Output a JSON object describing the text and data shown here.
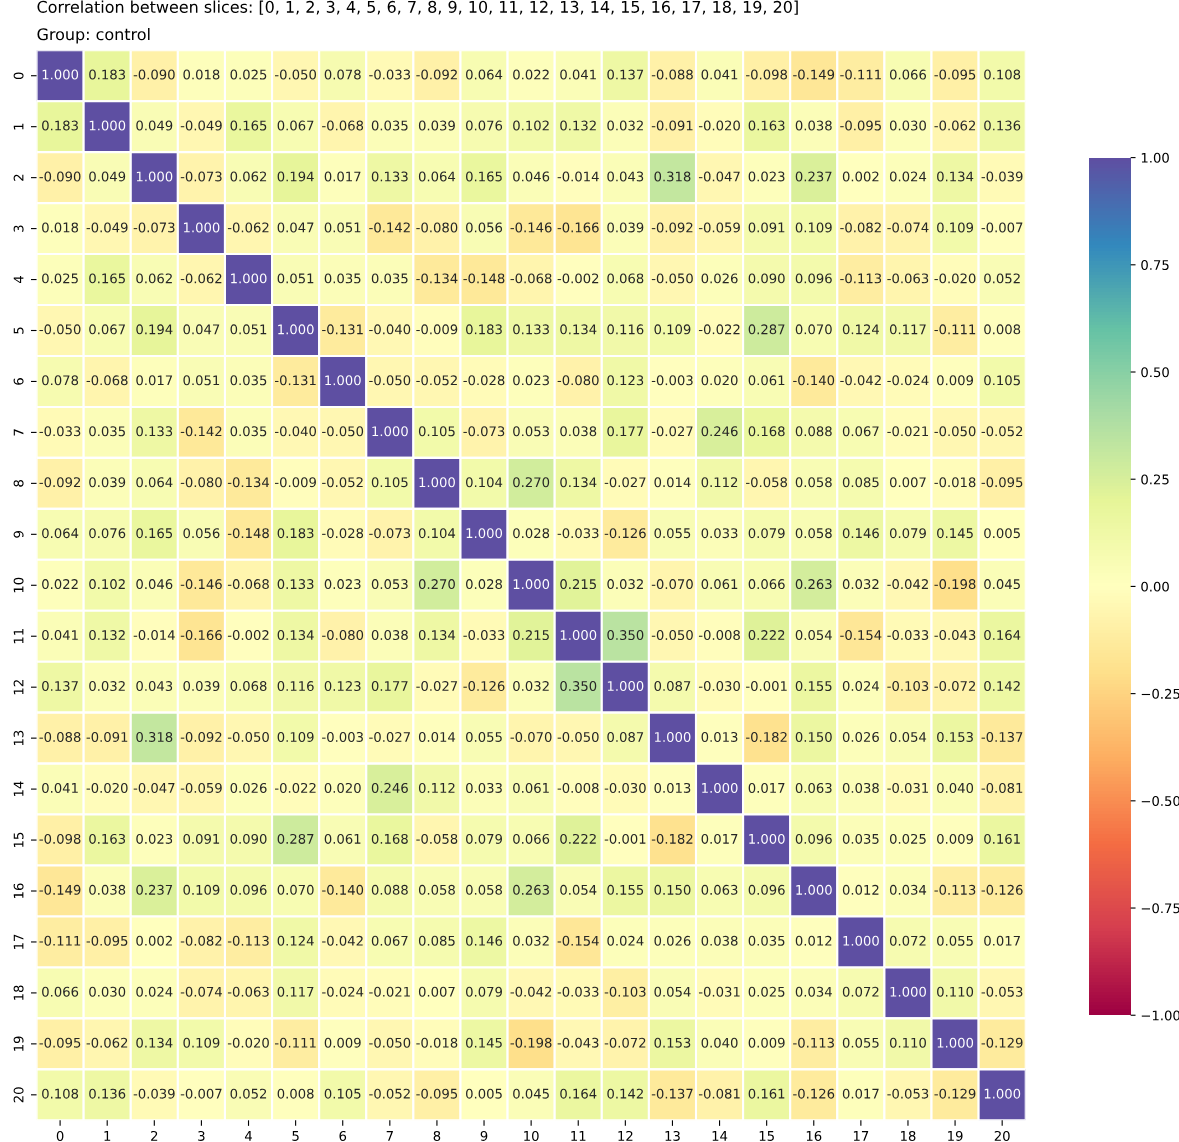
{
  "chart_data": {
    "type": "heatmap",
    "title": "Correlation between slices: [0, 1, 2, 3, 4, 5, 6, 7, 8, 9, 10, 11, 12, 13, 14, 15, 16, 17, 18, 19, 20]",
    "subtitle": "Group: control",
    "categories": [
      "0",
      "1",
      "2",
      "3",
      "4",
      "5",
      "6",
      "7",
      "8",
      "9",
      "10",
      "11",
      "12",
      "13",
      "14",
      "15",
      "16",
      "17",
      "18",
      "19",
      "20"
    ],
    "y_categories": [
      "0",
      "1",
      "2",
      "3",
      "4",
      "5",
      "6",
      "7",
      "8",
      "9",
      "10",
      "11",
      "12",
      "13",
      "14",
      "15",
      "16",
      "17",
      "18",
      "19",
      "20"
    ],
    "cells": [
      [
        1.0,
        0.183,
        -0.09,
        0.018,
        0.025,
        -0.05,
        0.078,
        -0.033,
        -0.092,
        0.064,
        0.022,
        0.041,
        0.137,
        -0.088,
        0.041,
        -0.098,
        -0.149,
        -0.111,
        0.066,
        -0.095,
        0.108
      ],
      [
        0.183,
        1.0,
        0.049,
        -0.049,
        0.165,
        0.067,
        -0.068,
        0.035,
        0.039,
        0.076,
        0.102,
        0.132,
        0.032,
        -0.091,
        -0.02,
        0.163,
        0.038,
        -0.095,
        0.03,
        -0.062,
        0.136
      ],
      [
        -0.09,
        0.049,
        1.0,
        -0.073,
        0.062,
        0.194,
        0.017,
        0.133,
        0.064,
        0.165,
        0.046,
        -0.014,
        0.043,
        0.318,
        -0.047,
        0.023,
        0.237,
        0.002,
        0.024,
        0.134,
        -0.039
      ],
      [
        0.018,
        -0.049,
        -0.073,
        1.0,
        -0.062,
        0.047,
        0.051,
        -0.142,
        -0.08,
        0.056,
        -0.146,
        -0.166,
        0.039,
        -0.092,
        -0.059,
        0.091,
        0.109,
        -0.082,
        -0.074,
        0.109,
        -0.007
      ],
      [
        0.025,
        0.165,
        0.062,
        -0.062,
        1.0,
        0.051,
        0.035,
        0.035,
        -0.134,
        -0.148,
        -0.068,
        -0.002,
        0.068,
        -0.05,
        0.026,
        0.09,
        0.096,
        -0.113,
        -0.063,
        -0.02,
        0.052
      ],
      [
        -0.05,
        0.067,
        0.194,
        0.047,
        0.051,
        1.0,
        -0.131,
        -0.04,
        -0.009,
        0.183,
        0.133,
        0.134,
        0.116,
        0.109,
        -0.022,
        0.287,
        0.07,
        0.124,
        0.117,
        -0.111,
        0.008
      ],
      [
        0.078,
        -0.068,
        0.017,
        0.051,
        0.035,
        -0.131,
        1.0,
        -0.05,
        -0.052,
        -0.028,
        0.023,
        -0.08,
        0.123,
        -0.003,
        0.02,
        0.061,
        -0.14,
        -0.042,
        -0.024,
        0.009,
        0.105
      ],
      [
        -0.033,
        0.035,
        0.133,
        -0.142,
        0.035,
        -0.04,
        -0.05,
        1.0,
        0.105,
        -0.073,
        0.053,
        0.038,
        0.177,
        -0.027,
        0.246,
        0.168,
        0.088,
        0.067,
        -0.021,
        -0.05,
        -0.052
      ],
      [
        -0.092,
        0.039,
        0.064,
        -0.08,
        -0.134,
        -0.009,
        -0.052,
        0.105,
        1.0,
        0.104,
        0.27,
        0.134,
        -0.027,
        0.014,
        0.112,
        -0.058,
        0.058,
        0.085,
        0.007,
        -0.018,
        -0.095
      ],
      [
        0.064,
        0.076,
        0.165,
        0.056,
        -0.148,
        0.183,
        -0.028,
        -0.073,
        0.104,
        1.0,
        0.028,
        -0.033,
        -0.126,
        0.055,
        0.033,
        0.079,
        0.058,
        0.146,
        0.079,
        0.145,
        0.005
      ],
      [
        0.022,
        0.102,
        0.046,
        -0.146,
        -0.068,
        0.133,
        0.023,
        0.053,
        0.27,
        0.028,
        1.0,
        0.215,
        0.032,
        -0.07,
        0.061,
        0.066,
        0.263,
        0.032,
        -0.042,
        -0.198,
        0.045
      ],
      [
        0.041,
        0.132,
        -0.014,
        -0.166,
        -0.002,
        0.134,
        -0.08,
        0.038,
        0.134,
        -0.033,
        0.215,
        1.0,
        0.35,
        -0.05,
        -0.008,
        0.222,
        0.054,
        -0.154,
        -0.033,
        -0.043,
        0.164
      ],
      [
        0.137,
        0.032,
        0.043,
        0.039,
        0.068,
        0.116,
        0.123,
        0.177,
        -0.027,
        -0.126,
        0.032,
        0.35,
        1.0,
        0.087,
        -0.03,
        -0.001,
        0.155,
        0.024,
        -0.103,
        -0.072,
        0.142
      ],
      [
        -0.088,
        -0.091,
        0.318,
        -0.092,
        -0.05,
        0.109,
        -0.003,
        -0.027,
        0.014,
        0.055,
        -0.07,
        -0.05,
        0.087,
        1.0,
        0.013,
        -0.182,
        0.15,
        0.026,
        0.054,
        0.153,
        -0.137
      ],
      [
        0.041,
        -0.02,
        -0.047,
        -0.059,
        0.026,
        -0.022,
        0.02,
        0.246,
        0.112,
        0.033,
        0.061,
        -0.008,
        -0.03,
        0.013,
        1.0,
        0.017,
        0.063,
        0.038,
        -0.031,
        0.04,
        -0.081
      ],
      [
        -0.098,
        0.163,
        0.023,
        0.091,
        0.09,
        0.287,
        0.061,
        0.168,
        -0.058,
        0.079,
        0.066,
        0.222,
        -0.001,
        -0.182,
        0.017,
        1.0,
        0.096,
        0.035,
        0.025,
        0.009,
        0.161
      ],
      [
        -0.149,
        0.038,
        0.237,
        0.109,
        0.096,
        0.07,
        -0.14,
        0.088,
        0.058,
        0.058,
        0.263,
        0.054,
        0.155,
        0.15,
        0.063,
        0.096,
        1.0,
        0.012,
        0.034,
        -0.113,
        -0.126
      ],
      [
        -0.111,
        -0.095,
        0.002,
        -0.082,
        -0.113,
        0.124,
        -0.042,
        0.067,
        0.085,
        0.146,
        0.032,
        -0.154,
        0.024,
        0.026,
        0.038,
        0.035,
        0.012,
        1.0,
        0.072,
        0.055,
        0.017
      ],
      [
        0.066,
        0.03,
        0.024,
        -0.074,
        -0.063,
        0.117,
        -0.024,
        -0.021,
        0.007,
        0.079,
        -0.042,
        -0.033,
        -0.103,
        0.054,
        -0.031,
        0.025,
        0.034,
        0.072,
        1.0,
        0.11,
        -0.053
      ],
      [
        -0.095,
        -0.062,
        0.134,
        0.109,
        -0.02,
        -0.111,
        0.009,
        -0.05,
        -0.018,
        0.145,
        -0.198,
        -0.043,
        -0.072,
        0.153,
        0.04,
        0.009,
        -0.113,
        0.055,
        0.11,
        1.0,
        -0.129
      ],
      [
        0.108,
        0.136,
        -0.039,
        -0.007,
        0.052,
        0.008,
        0.105,
        -0.052,
        -0.095,
        0.005,
        0.045,
        0.164,
        0.142,
        -0.137,
        -0.081,
        0.161,
        -0.126,
        0.017,
        -0.053,
        -0.129,
        1.0
      ]
    ],
    "cell_labels": [
      [
        "1.000",
        "0.183",
        "-0.090",
        "0.018",
        "0.025",
        "-0.050",
        "0.078",
        "-0.033",
        "-0.092",
        "0.064",
        "0.022",
        "0.041",
        "0.137",
        "-0.088",
        "0.041",
        "-0.098",
        "-0.149",
        "-0.111",
        "0.066",
        "-0.095",
        "0.108"
      ],
      [
        "0.183",
        "1.000",
        "0.049",
        "-0.049",
        "0.165",
        "0.067",
        "-0.068",
        "0.035",
        "0.039",
        "0.076",
        "0.102",
        "0.132",
        "0.032",
        "-0.091",
        "-0.020",
        "0.163",
        "0.038",
        "-0.095",
        "0.030",
        "-0.062",
        "0.136"
      ],
      [
        "-0.090",
        "0.049",
        "1.000",
        "-0.073",
        "0.062",
        "0.194",
        "0.017",
        "0.133",
        "0.064",
        "0.165",
        "0.046",
        "-0.014",
        "0.043",
        "0.318",
        "-0.047",
        "0.023",
        "0.237",
        "0.002",
        "0.024",
        "0.134",
        "-0.039"
      ],
      [
        "0.018",
        "-0.049",
        "-0.073",
        "1.000",
        "-0.062",
        "0.047",
        "0.051",
        "-0.142",
        "-0.080",
        "0.056",
        "-0.146",
        "-0.166",
        "0.039",
        "-0.092",
        "-0.059",
        "0.091",
        "0.109",
        "-0.082",
        "-0.074",
        "0.109",
        "-0.007"
      ],
      [
        "0.025",
        "0.165",
        "0.062",
        "-0.062",
        "1.000",
        "0.051",
        "0.035",
        "0.035",
        "-0.134",
        "-0.148",
        "-0.068",
        "-0.002",
        "0.068",
        "-0.050",
        "0.026",
        "0.090",
        "0.096",
        "-0.113",
        "-0.063",
        "-0.020",
        "0.052"
      ],
      [
        "-0.050",
        "0.067",
        "0.194",
        "0.047",
        "0.051",
        "1.000",
        "-0.131",
        "-0.040",
        "-0.009",
        "0.183",
        "0.133",
        "0.134",
        "0.116",
        "0.109",
        "-0.022",
        "0.287",
        "0.070",
        "0.124",
        "0.117",
        "-0.111",
        "0.008"
      ],
      [
        "0.078",
        "-0.068",
        "0.017",
        "0.051",
        "0.035",
        "-0.131",
        "1.000",
        "-0.050",
        "-0.052",
        "-0.028",
        "0.023",
        "-0.080",
        "0.123",
        "-0.003",
        "0.020",
        "0.061",
        "-0.140",
        "-0.042",
        "-0.024",
        "0.009",
        "0.105"
      ],
      [
        "-0.033",
        "0.035",
        "0.133",
        "-0.142",
        "0.035",
        "-0.040",
        "-0.050",
        "1.000",
        "0.105",
        "-0.073",
        "0.053",
        "0.038",
        "0.177",
        "-0.027",
        "0.246",
        "0.168",
        "0.088",
        "0.067",
        "-0.021",
        "-0.050",
        "-0.052"
      ],
      [
        "-0.092",
        "0.039",
        "0.064",
        "-0.080",
        "-0.134",
        "-0.009",
        "-0.052",
        "0.105",
        "1.000",
        "0.104",
        "0.270",
        "0.134",
        "-0.027",
        "0.014",
        "0.112",
        "-0.058",
        "0.058",
        "0.085",
        "0.007",
        "-0.018",
        "-0.095"
      ],
      [
        "0.064",
        "0.076",
        "0.165",
        "0.056",
        "-0.148",
        "0.183",
        "-0.028",
        "-0.073",
        "0.104",
        "1.000",
        "0.028",
        "-0.033",
        "-0.126",
        "0.055",
        "0.033",
        "0.079",
        "0.058",
        "0.146",
        "0.079",
        "0.145",
        "0.005"
      ],
      [
        "0.022",
        "0.102",
        "0.046",
        "-0.146",
        "-0.068",
        "0.133",
        "0.023",
        "0.053",
        "0.270",
        "0.028",
        "1.000",
        "0.215",
        "0.032",
        "-0.070",
        "0.061",
        "0.066",
        "0.263",
        "0.032",
        "-0.042",
        "-0.198",
        "0.045"
      ],
      [
        "0.041",
        "0.132",
        "-0.014",
        "-0.166",
        "-0.002",
        "0.134",
        "-0.080",
        "0.038",
        "0.134",
        "-0.033",
        "0.215",
        "1.000",
        "0.350",
        "-0.050",
        "-0.008",
        "0.222",
        "0.054",
        "-0.154",
        "-0.033",
        "-0.043",
        "0.164"
      ],
      [
        "0.137",
        "0.032",
        "0.043",
        "0.039",
        "0.068",
        "0.116",
        "0.123",
        "0.177",
        "-0.027",
        "-0.126",
        "0.032",
        "0.350",
        "1.000",
        "0.087",
        "-0.030",
        "-0.001",
        "0.155",
        "0.024",
        "-0.103",
        "-0.072",
        "0.142"
      ],
      [
        "-0.088",
        "-0.091",
        "0.318",
        "-0.092",
        "-0.050",
        "0.109",
        "-0.003",
        "-0.027",
        "0.014",
        "0.055",
        "-0.070",
        "-0.050",
        "0.087",
        "1.000",
        "0.013",
        "-0.182",
        "0.150",
        "0.026",
        "0.054",
        "0.153",
        "-0.137"
      ],
      [
        "0.041",
        "-0.020",
        "-0.047",
        "-0.059",
        "0.026",
        "-0.022",
        "0.020",
        "0.246",
        "0.112",
        "0.033",
        "0.061",
        "-0.008",
        "-0.030",
        "0.013",
        "1.000",
        "0.017",
        "0.063",
        "0.038",
        "-0.031",
        "0.040",
        "-0.081"
      ],
      [
        "-0.098",
        "0.163",
        "0.023",
        "0.091",
        "0.090",
        "0.287",
        "0.061",
        "0.168",
        "-0.058",
        "0.079",
        "0.066",
        "0.222",
        "-0.001",
        "-0.182",
        "0.017",
        "1.000",
        "0.096",
        "0.035",
        "0.025",
        "0.009",
        "0.161"
      ],
      [
        "-0.149",
        "0.038",
        "0.237",
        "0.109",
        "0.096",
        "0.070",
        "-0.140",
        "0.088",
        "0.058",
        "0.058",
        "0.263",
        "0.054",
        "0.155",
        "0.150",
        "0.063",
        "0.096",
        "1.000",
        "0.012",
        "0.034",
        "-0.113",
        "-0.126"
      ],
      [
        "-0.111",
        "-0.095",
        "0.002",
        "-0.082",
        "-0.113",
        "0.124",
        "-0.042",
        "0.067",
        "0.085",
        "0.146",
        "0.032",
        "-0.154",
        "0.024",
        "0.026",
        "0.038",
        "0.035",
        "0.012",
        "1.000",
        "0.072",
        "0.055",
        "0.017"
      ],
      [
        "0.066",
        "0.030",
        "0.024",
        "-0.074",
        "-0.063",
        "0.117",
        "-0.024",
        "-0.021",
        "0.007",
        "0.079",
        "-0.042",
        "-0.033",
        "-0.103",
        "0.054",
        "-0.031",
        "0.025",
        "0.034",
        "0.072",
        "1.000",
        "0.110",
        "-0.053"
      ],
      [
        "-0.095",
        "-0.062",
        "0.134",
        "0.109",
        "-0.020",
        "-0.111",
        "0.009",
        "-0.050",
        "-0.018",
        "0.145",
        "-0.198",
        "-0.043",
        "-0.072",
        "0.153",
        "0.040",
        "0.009",
        "-0.113",
        "0.055",
        "0.110",
        "1.000",
        "-0.129"
      ],
      [
        "0.108",
        "0.136",
        "-0.039",
        "-0.007",
        "0.052",
        "0.008",
        "0.105",
        "-0.052",
        "-0.095",
        "0.005",
        "0.045",
        "0.164",
        "0.142",
        "-0.137",
        "-0.081",
        "0.161",
        "-0.126",
        "0.017",
        "-0.053",
        "-0.129",
        "1.000"
      ]
    ],
    "data_labels": true,
    "clim": [
      -1,
      1
    ],
    "cticks": [
      {
        "value": -1,
        "label": "−1.00"
      },
      {
        "value": -0.75,
        "label": "−0.75"
      },
      {
        "value": -0.5,
        "label": "−0.50"
      },
      {
        "value": -0.25,
        "label": "−0.25"
      },
      {
        "value": 0,
        "label": "0.00"
      },
      {
        "value": 0.25,
        "label": "0.25"
      },
      {
        "value": 0.5,
        "label": "0.50"
      },
      {
        "value": 0.75,
        "label": "0.75"
      },
      {
        "value": 1,
        "label": "1.00"
      }
    ]
  }
}
